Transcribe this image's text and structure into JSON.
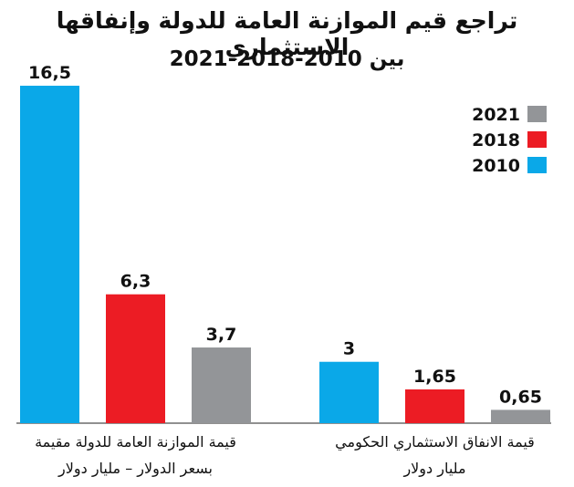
{
  "chart_data": {
    "type": "bar",
    "title": "تراجع قيم الموازنة العامة للدولة وإنفاقها الاستثماري",
    "subtitle": "بين 2010-2018-2021",
    "groups": [
      {
        "label_lines": [
          "قيمة الموازنة العامة للدولة مقيمة",
          "بسعر الدولار – مليار دولار"
        ],
        "values": [
          16.5,
          6.3,
          3.7
        ],
        "value_labels": [
          "16,5",
          "6,3",
          "3,7"
        ]
      },
      {
        "label_lines": [
          "قيمة الانفاق الاستثماري الحكومي",
          "مليار دولار"
        ],
        "values": [
          3,
          1.65,
          0.65
        ],
        "value_labels": [
          "3",
          "1,65",
          "0,65"
        ]
      }
    ],
    "series": [
      {
        "name": "2010",
        "color": "#0aa8e8"
      },
      {
        "name": "2018",
        "color": "#ec1c24"
      },
      {
        "name": "2021",
        "color": "#939598"
      }
    ],
    "legend_order": [
      "2021",
      "2018",
      "2010"
    ],
    "legend_position": "top-right",
    "ylim": [
      0,
      16.5
    ],
    "grid": false
  }
}
